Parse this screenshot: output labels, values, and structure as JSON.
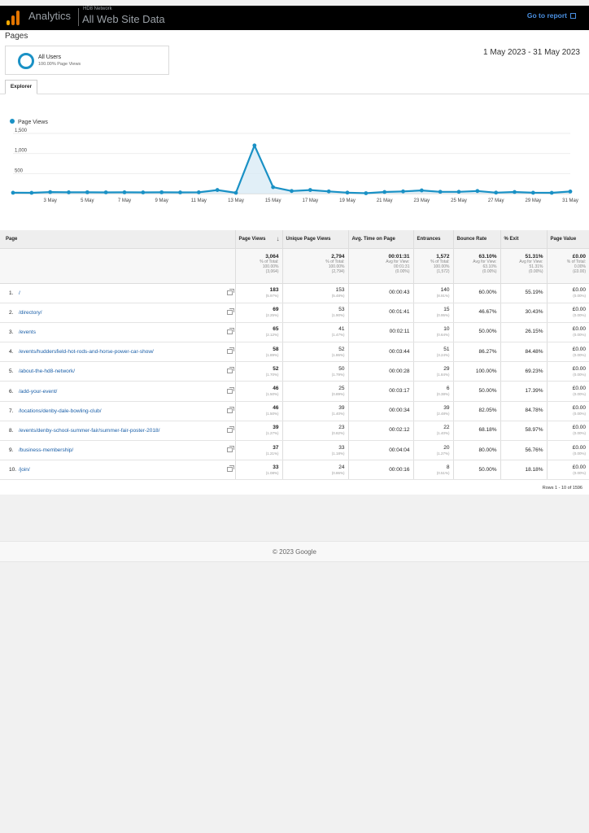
{
  "header": {
    "app_name": "Analytics",
    "account": "HD8 Network",
    "property": "All Web Site Data",
    "go_to_report": "Go to report"
  },
  "page_title": "Pages",
  "segment": {
    "name": "All Users",
    "subtitle": "100.00% Page Views"
  },
  "date_range": "1 May 2023 - 31 May 2023",
  "tabs": [
    {
      "label": "Explorer"
    }
  ],
  "legend": {
    "label": "Page Views"
  },
  "chart_data": {
    "type": "line",
    "series": [
      {
        "name": "Page Views",
        "values": [
          22,
          20,
          38,
          32,
          33,
          31,
          32,
          30,
          33,
          30,
          32,
          90,
          20,
          1200,
          160,
          65,
          90,
          55,
          25,
          10,
          40,
          55,
          80,
          45,
          45,
          65,
          25,
          40,
          22,
          20,
          52
        ]
      }
    ],
    "x": [
      "1 May",
      "2 May",
      "3 May",
      "4 May",
      "5 May",
      "6 May",
      "7 May",
      "8 May",
      "9 May",
      "10 May",
      "11 May",
      "12 May",
      "13 May",
      "14 May",
      "15 May",
      "16 May",
      "17 May",
      "18 May",
      "19 May",
      "20 May",
      "21 May",
      "22 May",
      "23 May",
      "24 May",
      "25 May",
      "26 May",
      "27 May",
      "28 May",
      "29 May",
      "30 May",
      "31 May"
    ],
    "x_ticks": [
      "3 May",
      "5 May",
      "7 May",
      "9 May",
      "11 May",
      "13 May",
      "15 May",
      "17 May",
      "19 May",
      "21 May",
      "23 May",
      "25 May",
      "27 May",
      "29 May",
      "31 May"
    ],
    "y_ticks": [
      "500",
      "1,000",
      "1,500"
    ],
    "ylim": [
      0,
      1500
    ],
    "color": "#1a91c5",
    "fill": "#d9ebf5"
  },
  "table": {
    "headers": [
      "Page",
      "Page Views",
      "Unique Page Views",
      "Avg. Time on Page",
      "Entrances",
      "Bounce Rate",
      "% Exit",
      "Page Value"
    ],
    "totals": [
      {
        "main": "",
        "sub": []
      },
      {
        "main": "3,064",
        "sub": [
          "% of Total:",
          "100.00%",
          "(3,064)"
        ]
      },
      {
        "main": "2,794",
        "sub": [
          "% of Total:",
          "100.00%",
          "(2,794)"
        ]
      },
      {
        "main": "00:01:31",
        "sub": [
          "Avg for View:",
          "00:01:31",
          "(0.00%)"
        ]
      },
      {
        "main": "1,572",
        "sub": [
          "% of Total:",
          "100.00%",
          "(1,572)"
        ]
      },
      {
        "main": "63.10%",
        "sub": [
          "Avg for View:",
          "63.10%",
          "(0.00%)"
        ]
      },
      {
        "main": "51.31%",
        "sub": [
          "Avg for View:",
          "51.31%",
          "(0.00%)"
        ]
      },
      {
        "main": "£0.00",
        "sub": [
          "% of Total:",
          "0.00%",
          "(£0.00)"
        ]
      }
    ],
    "rows": [
      {
        "idx": "1.",
        "page": "/",
        "pv": "183",
        "pv_pct": "(5.97%)",
        "upv": "153",
        "upv_pct": "(5.48%)",
        "avg": "00:00:43",
        "ent": "140",
        "ent_pct": "(8.91%)",
        "bounce": "60.00%",
        "exit": "55.19%",
        "val": "£0.00",
        "val_pct": "(0.00%)"
      },
      {
        "idx": "2.",
        "page": "/directory/",
        "pv": "69",
        "pv_pct": "(2.25%)",
        "upv": "53",
        "upv_pct": "(1.90%)",
        "avg": "00:01:41",
        "ent": "15",
        "ent_pct": "(0.95%)",
        "bounce": "46.67%",
        "exit": "30.43%",
        "val": "£0.00",
        "val_pct": "(0.00%)"
      },
      {
        "idx": "3.",
        "page": "/events",
        "pv": "65",
        "pv_pct": "(2.12%)",
        "upv": "41",
        "upv_pct": "(1.47%)",
        "avg": "00:02:11",
        "ent": "10",
        "ent_pct": "(0.64%)",
        "bounce": "50.00%",
        "exit": "26.15%",
        "val": "£0.00",
        "val_pct": "(0.00%)"
      },
      {
        "idx": "4.",
        "page": "/events/huddersfield-hot-rods-and-horse-power-car-show/",
        "pv": "58",
        "pv_pct": "(1.89%)",
        "upv": "52",
        "upv_pct": "(1.86%)",
        "avg": "00:03:44",
        "ent": "51",
        "ent_pct": "(3.24%)",
        "bounce": "86.27%",
        "exit": "84.48%",
        "val": "£0.00",
        "val_pct": "(0.00%)"
      },
      {
        "idx": "5.",
        "page": "/about-the-hd8-network/",
        "pv": "52",
        "pv_pct": "(1.70%)",
        "upv": "50",
        "upv_pct": "(1.79%)",
        "avg": "00:00:28",
        "ent": "29",
        "ent_pct": "(1.84%)",
        "bounce": "100.00%",
        "exit": "69.23%",
        "val": "£0.00",
        "val_pct": "(0.00%)"
      },
      {
        "idx": "6.",
        "page": "/add-your-event/",
        "pv": "46",
        "pv_pct": "(1.50%)",
        "upv": "25",
        "upv_pct": "(0.89%)",
        "avg": "00:03:17",
        "ent": "6",
        "ent_pct": "(0.38%)",
        "bounce": "50.00%",
        "exit": "17.39%",
        "val": "£0.00",
        "val_pct": "(0.00%)"
      },
      {
        "idx": "7.",
        "page": "/locations/denby-dale-bowling-club/",
        "pv": "46",
        "pv_pct": "(1.50%)",
        "upv": "39",
        "upv_pct": "(1.40%)",
        "avg": "00:00:34",
        "ent": "39",
        "ent_pct": "(2.48%)",
        "bounce": "82.05%",
        "exit": "84.78%",
        "val": "£0.00",
        "val_pct": "(0.00%)"
      },
      {
        "idx": "8.",
        "page": "/events/denby-school-summer-fair/summer-fair-poster-2018/",
        "pv": "39",
        "pv_pct": "(1.27%)",
        "upv": "23",
        "upv_pct": "(0.82%)",
        "avg": "00:02:12",
        "ent": "22",
        "ent_pct": "(1.40%)",
        "bounce": "68.18%",
        "exit": "58.97%",
        "val": "£0.00",
        "val_pct": "(0.00%)"
      },
      {
        "idx": "9.",
        "page": "/business-membership/",
        "pv": "37",
        "pv_pct": "(1.21%)",
        "upv": "33",
        "upv_pct": "(1.18%)",
        "avg": "00:04:04",
        "ent": "20",
        "ent_pct": "(1.27%)",
        "bounce": "80.00%",
        "exit": "56.76%",
        "val": "£0.00",
        "val_pct": "(0.00%)"
      },
      {
        "idx": "10.",
        "page": "/join/",
        "pv": "33",
        "pv_pct": "(1.08%)",
        "upv": "24",
        "upv_pct": "(0.86%)",
        "avg": "00:00:16",
        "ent": "8",
        "ent_pct": "(0.51%)",
        "bounce": "50.00%",
        "exit": "18.18%",
        "val": "£0.00",
        "val_pct": "(0.00%)"
      }
    ],
    "pager": "Rows 1 - 10 of 1596"
  },
  "footer": "© 2023 Google",
  "colors": {
    "accent": "#1a91c5",
    "link": "#1a5fa8",
    "logo": [
      "#f9ab00",
      "#e37400",
      "#e37400"
    ]
  }
}
